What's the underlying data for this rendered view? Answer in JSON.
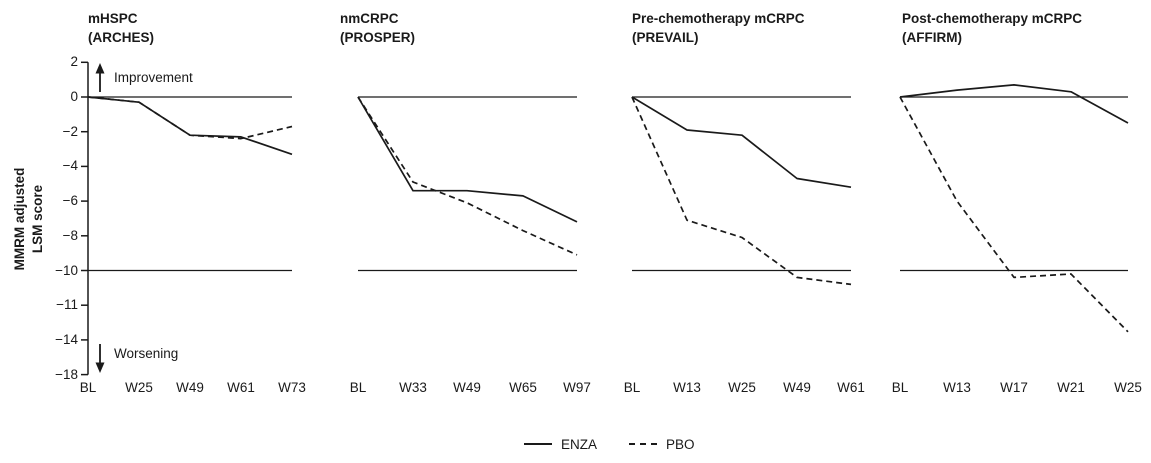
{
  "figure": {
    "y_axis": {
      "label_lines": [
        "MMRM adjusted",
        "LSM score"
      ],
      "tick_labels": [
        "2",
        "0",
        "−2",
        "−4",
        "−6",
        "−8",
        "−10",
        "−11",
        "−14",
        "−18"
      ],
      "tick_values": [
        2,
        0,
        -2,
        -4,
        -6,
        -8,
        -10,
        -11,
        -14,
        -18
      ],
      "reference_lines": [
        0,
        -10
      ],
      "range_note": "axis compressed below -10"
    },
    "annotations": {
      "improvement": "Improvement",
      "worsening": "Worsening"
    },
    "legend": {
      "items": [
        {
          "label": "ENZA",
          "line_style": "solid"
        },
        {
          "label": "PBO",
          "line_style": "dashed"
        }
      ]
    },
    "line_color": "#1a1a1a"
  },
  "chart_data": [
    {
      "type": "line",
      "title": "mHSPC",
      "subtitle": "(ARCHES)",
      "categories": [
        "BL",
        "W25",
        "W49",
        "W61",
        "W73"
      ],
      "series": [
        {
          "name": "ENZA",
          "style": "solid",
          "values": [
            0,
            -0.3,
            -2.2,
            -2.3,
            -3.3
          ]
        },
        {
          "name": "PBO",
          "style": "dashed",
          "values": [
            0,
            -0.3,
            -2.2,
            -2.4,
            -1.7
          ]
        }
      ],
      "ylabel": "MMRM adjusted LSM score",
      "ylim": [
        -18,
        2
      ],
      "grid": false
    },
    {
      "type": "line",
      "title": "nmCRPC",
      "subtitle": "(PROSPER)",
      "categories": [
        "BL",
        "W33",
        "W49",
        "W65",
        "W97"
      ],
      "series": [
        {
          "name": "ENZA",
          "style": "solid",
          "values": [
            0,
            -5.4,
            -5.4,
            -5.7,
            -7.2
          ]
        },
        {
          "name": "PBO",
          "style": "dashed",
          "values": [
            0,
            -4.9,
            -6.1,
            -7.7,
            -9.1
          ]
        }
      ],
      "ylim": [
        -18,
        2
      ],
      "grid": false
    },
    {
      "type": "line",
      "title": "Pre-chemotherapy mCRPC",
      "subtitle": "(PREVAIL)",
      "categories": [
        "BL",
        "W13",
        "W25",
        "W49",
        "W61"
      ],
      "series": [
        {
          "name": "ENZA",
          "style": "solid",
          "values": [
            0,
            -1.9,
            -2.2,
            -4.7,
            -5.2
          ]
        },
        {
          "name": "PBO",
          "style": "dashed",
          "values": [
            0,
            -7.1,
            -8.1,
            -10.2,
            -10.4
          ]
        }
      ],
      "ylim": [
        -18,
        2
      ],
      "grid": false
    },
    {
      "type": "line",
      "title": "Post-chemotherapy mCRPC",
      "subtitle": "(AFFIRM)",
      "categories": [
        "BL",
        "W13",
        "W17",
        "W21",
        "W25"
      ],
      "series": [
        {
          "name": "ENZA",
          "style": "solid",
          "values": [
            0,
            0.4,
            0.7,
            0.3,
            -1.5
          ]
        },
        {
          "name": "PBO",
          "style": "dashed",
          "values": [
            0,
            -6.0,
            -10.2,
            -10.1,
            -13.3
          ]
        }
      ],
      "ylim": [
        -18,
        2
      ],
      "grid": false
    }
  ]
}
